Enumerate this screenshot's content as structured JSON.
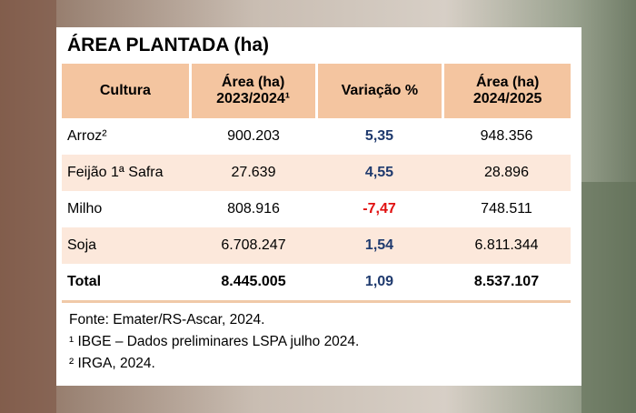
{
  "title": "ÁREA PLANTADA (ha)",
  "table": {
    "header": [
      [
        "Cultura"
      ],
      [
        "Área (ha)",
        "2023/2024¹"
      ],
      [
        "Variação %"
      ],
      [
        "Área (ha)",
        "2024/2025"
      ]
    ],
    "rows": [
      [
        "Arroz²",
        "900.203",
        "5,35",
        "948.356"
      ],
      [
        "Feijão 1ª Safra",
        "27.639",
        "4,55",
        "28.896"
      ],
      [
        "Milho",
        "808.916",
        "-7,47",
        "748.511"
      ],
      [
        "Soja",
        "6.708.247",
        "1,54",
        "6.811.344"
      ],
      [
        "Total",
        "8.445.005",
        "1,09",
        "8.537.107"
      ]
    ]
  },
  "footnotes": [
    "Fonte: Emater/RS-Ascar, 2024.",
    "¹ IBGE – Dados preliminares LSPA julho 2024.",
    "² IRGA, 2024."
  ]
}
